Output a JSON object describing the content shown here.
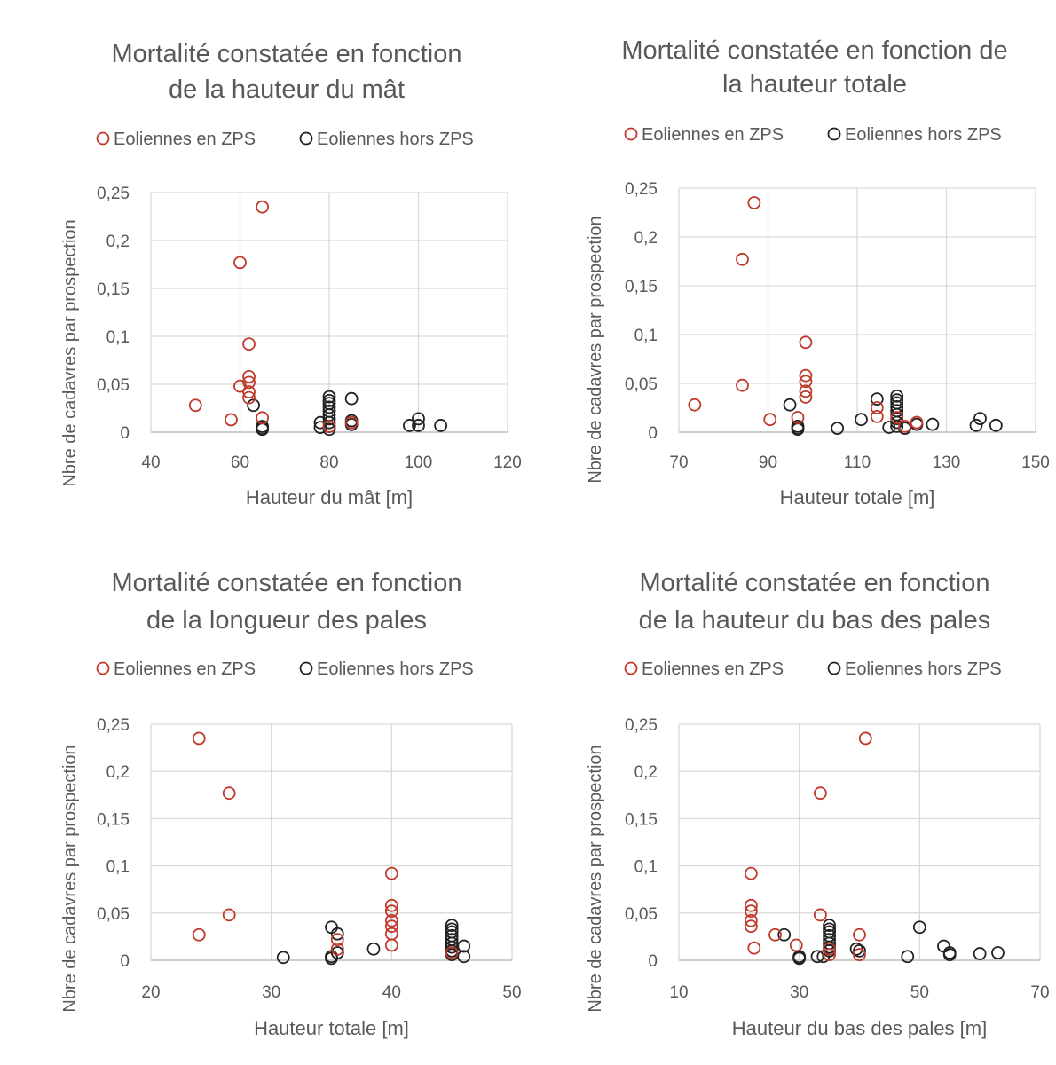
{
  "legend": {
    "zps": "Eoliennes en ZPS",
    "hors": "Eoliennes hors ZPS"
  },
  "colors": {
    "zps": "#c0392b",
    "hors": "#222222",
    "grid": "#d9d9d9",
    "text": "#595959"
  },
  "chart_data": [
    {
      "type": "scatter",
      "title_lines": [
        "Mortalité constatée en fonction",
        "de la hauteur du mât"
      ],
      "xlabel": "Hauteur du mât [m]",
      "ylabel": "Nbre de cadavres par prospection",
      "xlim": [
        40,
        120
      ],
      "ylim": [
        0,
        0.25
      ],
      "x_ticks": [
        "40",
        "60",
        "80",
        "100",
        "120"
      ],
      "y_ticks": [
        "0",
        "0,05",
        "0,1",
        "0,15",
        "0,2",
        "0,25"
      ],
      "grid": true,
      "series": [
        {
          "name": "Eoliennes en ZPS",
          "points": [
            [
              65,
              0.235
            ],
            [
              60,
              0.177
            ],
            [
              62,
              0.092
            ],
            [
              62,
              0.058
            ],
            [
              62,
              0.052
            ],
            [
              60,
              0.048
            ],
            [
              62,
              0.042
            ],
            [
              62,
              0.036
            ],
            [
              50,
              0.028
            ],
            [
              65,
              0.015
            ],
            [
              58,
              0.013
            ],
            [
              80,
              0.006
            ],
            [
              85,
              0.01
            ]
          ]
        },
        {
          "name": "Eoliennes hors ZPS",
          "points": [
            [
              63,
              0.028
            ],
            [
              65,
              0.006
            ],
            [
              65,
              0.004
            ],
            [
              65,
              0.003
            ],
            [
              78,
              0.01
            ],
            [
              78,
              0.005
            ],
            [
              80,
              0.037
            ],
            [
              80,
              0.033
            ],
            [
              80,
              0.03
            ],
            [
              80,
              0.026
            ],
            [
              80,
              0.022
            ],
            [
              80,
              0.018
            ],
            [
              80,
              0.014
            ],
            [
              80,
              0.01
            ],
            [
              80,
              0.006
            ],
            [
              80,
              0.003
            ],
            [
              85,
              0.035
            ],
            [
              85,
              0.012
            ],
            [
              85,
              0.008
            ],
            [
              100,
              0.014
            ],
            [
              100,
              0.007
            ],
            [
              98,
              0.007
            ],
            [
              105,
              0.007
            ]
          ]
        }
      ]
    },
    {
      "type": "scatter",
      "title_lines": [
        "Mortalité constatée en fonction de",
        "la hauteur totale"
      ],
      "xlabel": "Hauteur totale [m]",
      "ylabel": "Nbre de cadavres par prospection",
      "xlim": [
        70,
        160
      ],
      "ylim": [
        0,
        0.25
      ],
      "x_ticks": [
        "70",
        "90",
        "110",
        "130",
        "150"
      ],
      "y_ticks": [
        "0",
        "0,05",
        "0,1",
        "0,15",
        "0,2",
        "0,25"
      ],
      "grid": true,
      "series": [
        {
          "name": "Eoliennes en ZPS",
          "points": [
            [
              89,
              0.235
            ],
            [
              86,
              0.177
            ],
            [
              102,
              0.092
            ],
            [
              102,
              0.058
            ],
            [
              102,
              0.052
            ],
            [
              86,
              0.048
            ],
            [
              102,
              0.042
            ],
            [
              102,
              0.036
            ],
            [
              74,
              0.028
            ],
            [
              120,
              0.025
            ],
            [
              120,
              0.016
            ],
            [
              100,
              0.015
            ],
            [
              93,
              0.013
            ],
            [
              125,
              0.015
            ],
            [
              127,
              0.006
            ],
            [
              130,
              0.01
            ]
          ]
        },
        {
          "name": "Eoliennes hors ZPS",
          "points": [
            [
              98,
              0.028
            ],
            [
              100,
              0.006
            ],
            [
              100,
              0.004
            ],
            [
              100,
              0.003
            ],
            [
              110,
              0.004
            ],
            [
              116,
              0.013
            ],
            [
              120,
              0.034
            ],
            [
              123,
              0.005
            ],
            [
              125,
              0.037
            ],
            [
              125,
              0.033
            ],
            [
              125,
              0.03
            ],
            [
              125,
              0.026
            ],
            [
              125,
              0.022
            ],
            [
              125,
              0.018
            ],
            [
              125,
              0.014
            ],
            [
              125,
              0.01
            ],
            [
              125,
              0.006
            ],
            [
              127,
              0.004
            ],
            [
              130,
              0.008
            ],
            [
              134,
              0.008
            ],
            [
              145,
              0.007
            ],
            [
              146,
              0.014
            ],
            [
              150,
              0.007
            ]
          ]
        }
      ]
    },
    {
      "type": "scatter",
      "title_lines": [
        "Mortalité constatée en fonction",
        "de la longueur des pales"
      ],
      "xlabel": "Hauteur totale [m]",
      "ylabel": "Nbre de cadavres par prospection",
      "xlim": [
        20,
        50
      ],
      "ylim": [
        0,
        0.25
      ],
      "x_ticks": [
        "20",
        "30",
        "40",
        "50"
      ],
      "y_ticks": [
        "0",
        "0,05",
        "0,1",
        "0,15",
        "0,2",
        "0,25"
      ],
      "grid": true,
      "series": [
        {
          "name": "Eoliennes en ZPS",
          "points": [
            [
              24,
              0.235
            ],
            [
              26.5,
              0.177
            ],
            [
              26.5,
              0.048
            ],
            [
              24,
              0.027
            ],
            [
              40,
              0.092
            ],
            [
              40,
              0.058
            ],
            [
              40,
              0.052
            ],
            [
              40,
              0.042
            ],
            [
              40,
              0.036
            ],
            [
              40,
              0.028
            ],
            [
              40,
              0.016
            ],
            [
              35.5,
              0.022
            ],
            [
              35.5,
              0.012
            ],
            [
              45,
              0.008
            ]
          ]
        },
        {
          "name": "Eoliennes hors ZPS",
          "points": [
            [
              31,
              0.003
            ],
            [
              35,
              0.035
            ],
            [
              35,
              0.004
            ],
            [
              35,
              0.002
            ],
            [
              35.5,
              0.028
            ],
            [
              35.5,
              0.008
            ],
            [
              38.5,
              0.012
            ],
            [
              45,
              0.037
            ],
            [
              45,
              0.033
            ],
            [
              45,
              0.03
            ],
            [
              45,
              0.026
            ],
            [
              45,
              0.022
            ],
            [
              45,
              0.018
            ],
            [
              45,
              0.014
            ],
            [
              45,
              0.01
            ],
            [
              45,
              0.006
            ],
            [
              46,
              0.015
            ],
            [
              46,
              0.004
            ]
          ]
        }
      ]
    },
    {
      "type": "scatter",
      "title_lines": [
        "Mortalité constatée en fonction",
        "de la hauteur du bas des pales"
      ],
      "xlabel": "Hauteur du bas des pales [m]",
      "ylabel": "Nbre de cadavres par prospection",
      "xlim": [
        10,
        70
      ],
      "ylim": [
        0,
        0.25
      ],
      "x_ticks": [
        "10",
        "30",
        "50",
        "70"
      ],
      "y_ticks": [
        "0",
        "0,05",
        "0,1",
        "0,15",
        "0,2",
        "0,25"
      ],
      "grid": true,
      "series": [
        {
          "name": "Eoliennes en ZPS",
          "points": [
            [
              41,
              0.235
            ],
            [
              33.5,
              0.177
            ],
            [
              22,
              0.092
            ],
            [
              22,
              0.058
            ],
            [
              22,
              0.052
            ],
            [
              33.5,
              0.048
            ],
            [
              22,
              0.042
            ],
            [
              22,
              0.036
            ],
            [
              26,
              0.027
            ],
            [
              40,
              0.027
            ],
            [
              29.5,
              0.016
            ],
            [
              22.5,
              0.013
            ],
            [
              35,
              0.012
            ],
            [
              35,
              0.006
            ],
            [
              40,
              0.006
            ]
          ]
        },
        {
          "name": "Eoliennes hors ZPS",
          "points": [
            [
              27.5,
              0.027
            ],
            [
              30,
              0.004
            ],
            [
              30,
              0.003
            ],
            [
              30,
              0.002
            ],
            [
              33,
              0.004
            ],
            [
              34,
              0.004
            ],
            [
              35,
              0.037
            ],
            [
              35,
              0.033
            ],
            [
              35,
              0.03
            ],
            [
              35,
              0.026
            ],
            [
              35,
              0.022
            ],
            [
              35,
              0.018
            ],
            [
              35,
              0.014
            ],
            [
              35,
              0.01
            ],
            [
              39.5,
              0.012
            ],
            [
              40,
              0.01
            ],
            [
              48,
              0.004
            ],
            [
              50,
              0.035
            ],
            [
              54,
              0.015
            ],
            [
              55,
              0.008
            ],
            [
              55,
              0.006
            ],
            [
              60,
              0.007
            ],
            [
              63,
              0.008
            ]
          ]
        }
      ]
    }
  ]
}
